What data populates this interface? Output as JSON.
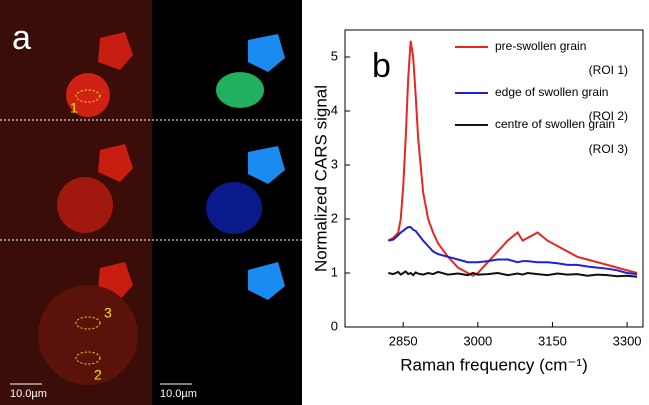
{
  "image_panel": {
    "label": "a",
    "roi_labels": [
      "1",
      "3",
      "2"
    ],
    "scale_bars": [
      "10.0µm",
      "10.0µm"
    ]
  },
  "chart_data": {
    "type": "line",
    "panel_label": "b",
    "x_label": "Raman frequency (cm⁻¹)",
    "y_label": "Normalized CARS signal",
    "x": [
      2820,
      2830,
      2840,
      2845,
      2850,
      2855,
      2860,
      2865,
      2870,
      2875,
      2880,
      2890,
      2900,
      2910,
      2920,
      2940,
      2960,
      2980,
      2990,
      3000,
      3020,
      3040,
      3060,
      3080,
      3090,
      3100,
      3120,
      3140,
      3160,
      3180,
      3200,
      3220,
      3240,
      3260,
      3280,
      3300,
      3320
    ],
    "series": [
      {
        "name": "pre-swollen grain",
        "roi": "(ROI 1)",
        "color": "#e8261f",
        "values": [
          1.6,
          1.65,
          1.75,
          2.0,
          2.6,
          3.5,
          4.6,
          5.3,
          5.0,
          4.3,
          3.5,
          2.5,
          2.0,
          1.75,
          1.55,
          1.3,
          1.1,
          1.0,
          0.95,
          1.0,
          1.2,
          1.4,
          1.6,
          1.75,
          1.6,
          1.65,
          1.75,
          1.6,
          1.5,
          1.4,
          1.3,
          1.25,
          1.2,
          1.15,
          1.1,
          1.05,
          1.0
        ]
      },
      {
        "name": "edge of swollen grain",
        "roi": "(ROI 2)",
        "color": "#1f1fe0",
        "values": [
          1.6,
          1.62,
          1.7,
          1.75,
          1.78,
          1.82,
          1.85,
          1.85,
          1.8,
          1.78,
          1.72,
          1.6,
          1.5,
          1.4,
          1.35,
          1.3,
          1.25,
          1.2,
          1.2,
          1.2,
          1.22,
          1.25,
          1.25,
          1.2,
          1.22,
          1.22,
          1.2,
          1.2,
          1.18,
          1.15,
          1.15,
          1.12,
          1.1,
          1.08,
          1.05,
          1.0,
          0.98
        ]
      },
      {
        "name": "centre of swollen grain",
        "roi": "(ROI 3)",
        "color": "#111111",
        "values": [
          1.0,
          0.98,
          1.02,
          0.97,
          1.0,
          1.03,
          0.98,
          1.0,
          0.96,
          1.01,
          0.99,
          0.97,
          1.0,
          0.98,
          1.02,
          0.97,
          0.99,
          0.96,
          1.0,
          0.97,
          0.98,
          1.0,
          0.96,
          0.99,
          0.97,
          1.0,
          0.98,
          0.96,
          0.99,
          0.97,
          0.98,
          0.95,
          0.97,
          0.96,
          0.94,
          0.95,
          0.93
        ]
      }
    ],
    "xlim": [
      2733,
      3332
    ],
    "ylim": [
      0,
      5.5
    ],
    "xticks": [
      2850,
      3000,
      3150,
      3300
    ],
    "yticks": [
      0,
      1,
      2,
      3,
      4,
      5
    ]
  }
}
